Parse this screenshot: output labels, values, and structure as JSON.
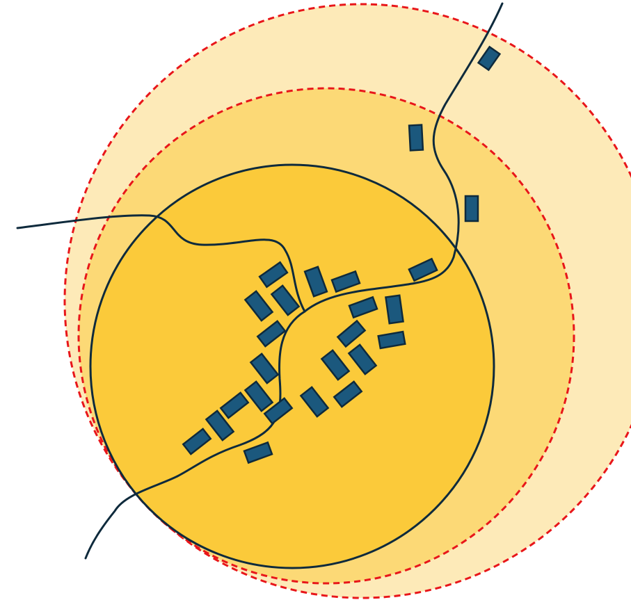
{
  "colors": {
    "background": "#ffffff",
    "outer_zone_fill": "#fdeab8",
    "middle_zone_fill": "#fcd976",
    "core_zone_fill": "#fbca3a",
    "dashed_boundary": "#e8161a",
    "road_line": "#0e2a3c",
    "building_fill": "#1b587d",
    "building_stroke": "#0e2a3c"
  },
  "zones": [
    {
      "id": "outer",
      "style": "dashed"
    },
    {
      "id": "middle",
      "style": "dashed"
    },
    {
      "id": "core",
      "style": "solid"
    }
  ],
  "roads": [
    "west-road",
    "northeast-road",
    "southwest-road",
    "central-road"
  ],
  "building_count": 31
}
